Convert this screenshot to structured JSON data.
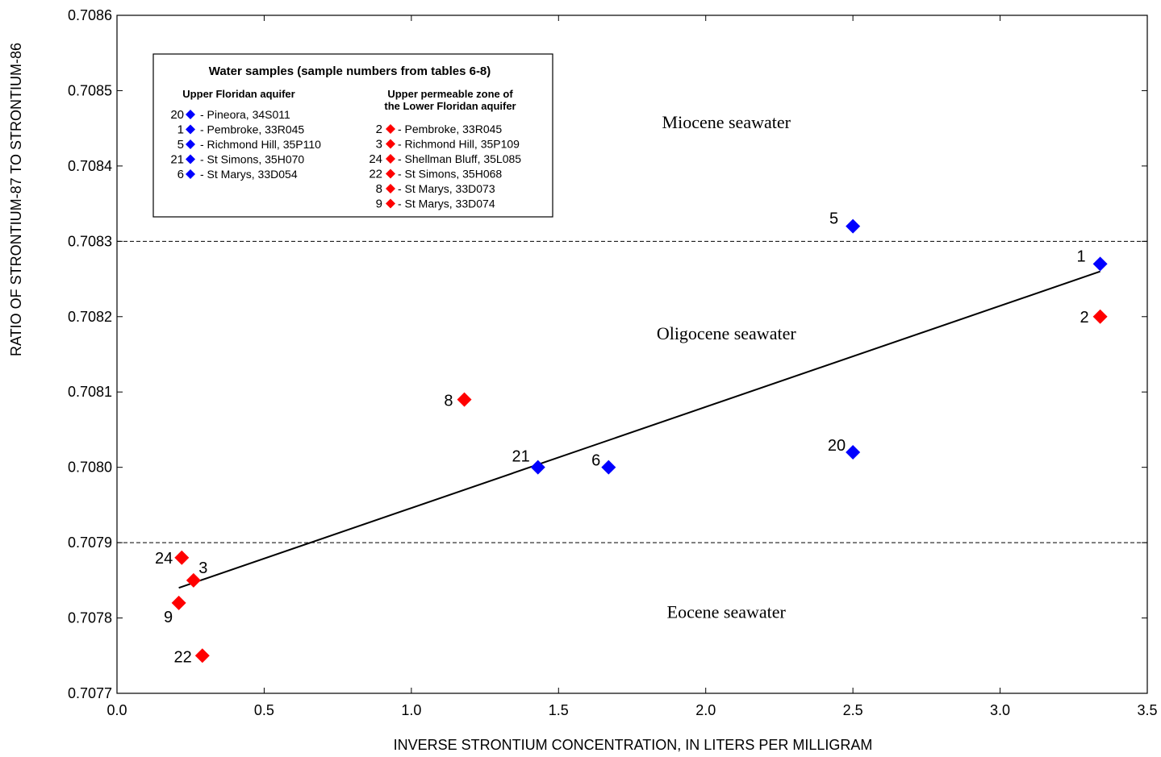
{
  "chart_data": {
    "type": "scatter",
    "xlabel": "INVERSE STRONTIUM CONCENTRATION, IN LITERS PER MILLIGRAM",
    "ylabel": "RATIO OF STRONTIUM-87 TO STRONTIUM-86",
    "xlim": [
      0.0,
      3.5
    ],
    "ylim": [
      0.7077,
      0.7086
    ],
    "x_ticks": [
      "0.0",
      "0.5",
      "1.0",
      "1.5",
      "2.0",
      "2.5",
      "3.0",
      "3.5"
    ],
    "y_ticks": [
      "0.7077",
      "0.7078",
      "0.7079",
      "0.7080",
      "0.7081",
      "0.7082",
      "0.7083",
      "0.7084",
      "0.7085",
      "0.7086"
    ],
    "reference_lines": [
      0.7079,
      0.7083
    ],
    "regions": [
      {
        "label": "Miocene seawater",
        "x": 2.07,
        "y": 0.70845
      },
      {
        "label": "Oligocene seawater",
        "x": 2.07,
        "y": 0.70817
      },
      {
        "label": "Eocene seawater",
        "x": 2.07,
        "y": 0.7078
      }
    ],
    "trend_line": {
      "x": [
        0.21,
        3.34
      ],
      "y": [
        0.70784,
        0.70826
      ]
    },
    "series": [
      {
        "color": "#0000ff",
        "points": [
          {
            "label": "5",
            "x": 2.5,
            "y": 0.70832
          },
          {
            "label": "1",
            "x": 3.34,
            "y": 0.70827
          },
          {
            "label": "21",
            "x": 1.43,
            "y": 0.708
          },
          {
            "label": "6",
            "x": 1.67,
            "y": 0.708
          },
          {
            "label": "20",
            "x": 2.5,
            "y": 0.70802
          }
        ]
      },
      {
        "color": "#ff0000",
        "points": [
          {
            "label": "2",
            "x": 3.34,
            "y": 0.7082
          },
          {
            "label": "8",
            "x": 1.18,
            "y": 0.70809
          },
          {
            "label": "24",
            "x": 0.22,
            "y": 0.70788
          },
          {
            "label": "3",
            "x": 0.26,
            "y": 0.70785
          },
          {
            "label": "9",
            "x": 0.21,
            "y": 0.70782
          },
          {
            "label": "22",
            "x": 0.29,
            "y": 0.70775
          }
        ]
      }
    ],
    "legend": {
      "title": "Water samples (sample numbers from tables 6-8)",
      "placement": "top-left",
      "groups": [
        {
          "heading": [
            "Upper Floridan aquifer"
          ],
          "color": "#0000ff",
          "entries": [
            {
              "num": "20",
              "text": "- Pineora, 34S011"
            },
            {
              "num": "1",
              "text": "- Pembroke, 33R045"
            },
            {
              "num": "5",
              "text": "- Richmond Hill, 35P110"
            },
            {
              "num": "21",
              "text": "- St Simons, 35H070"
            },
            {
              "num": "6",
              "text": "- St Marys, 33D054"
            }
          ]
        },
        {
          "heading": [
            "Upper permeable zone of",
            "the Lower Floridan aquifer"
          ],
          "color": "#ff0000",
          "entries": [
            {
              "num": "2",
              "text": "- Pembroke, 33R045"
            },
            {
              "num": "3",
              "text": "- Richmond Hill, 35P109"
            },
            {
              "num": "24",
              "text": "- Shellman Bluff, 35L085"
            },
            {
              "num": "22",
              "text": "- St Simons, 35H068"
            },
            {
              "num": "8",
              "text": "- St Marys, 33D073"
            },
            {
              "num": "9",
              "text": "- St Marys, 33D074"
            }
          ]
        }
      ]
    }
  }
}
